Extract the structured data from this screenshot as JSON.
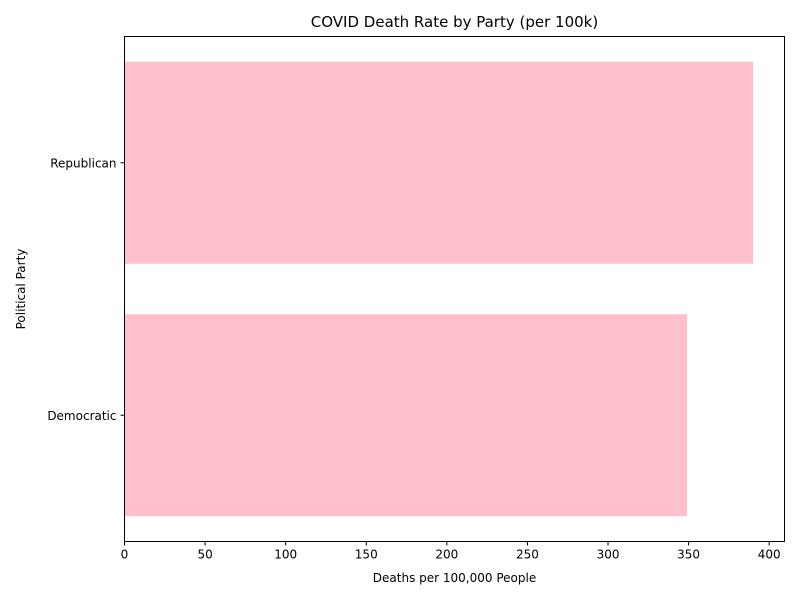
{
  "chart_data": {
    "type": "bar",
    "orientation": "horizontal",
    "title": "COVID Death Rate by Party (per 100k)",
    "xlabel": "Deaths per 100,000 People",
    "ylabel": "Political Party",
    "categories": [
      "Democratic",
      "Republican"
    ],
    "values": [
      349,
      390
    ],
    "xlim": [
      0,
      409.5
    ],
    "xticks": [
      0,
      50,
      100,
      150,
      200,
      250,
      300,
      350,
      400
    ],
    "bar_color": "#ffc0cb",
    "grid": false,
    "legend": "none"
  }
}
